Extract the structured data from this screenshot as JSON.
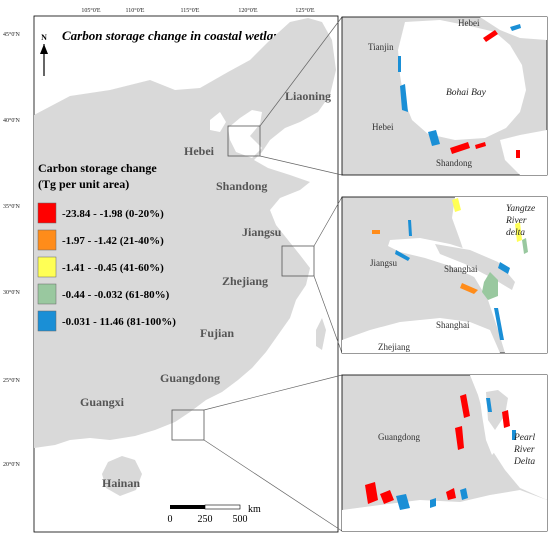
{
  "title": "Carbon storage change in coastal wetlands",
  "north": "N",
  "lon_ticks": [
    "105°0'E",
    "110°0'E",
    "115°0'E",
    "120°0'E",
    "125°0'E"
  ],
  "lat_ticks": [
    "45°0'N",
    "40°0'N",
    "35°0'N",
    "30°0'N",
    "25°0'N",
    "20°0'N"
  ],
  "legend": {
    "title_line1": "Carbon storage change",
    "title_line2": "(Tg per unit area)",
    "items": [
      {
        "label": "-23.84 - -1.98 (0-20%)",
        "color": "#ff0000"
      },
      {
        "label": "-1.97 - -1.42 (21-40%)",
        "color": "#ff8c1a"
      },
      {
        "label": "-1.41 - -0.45 (41-60%)",
        "color": "#ffff55"
      },
      {
        "label": "-0.44 - -0.032 (61-80%)",
        "color": "#99c89f"
      },
      {
        "label": "-0.031 - 11.46 (81-100%)",
        "color": "#1a8fd6"
      }
    ]
  },
  "provinces": {
    "liaoning": "Liaoning",
    "hebei": "Hebei",
    "shandong": "Shandong",
    "jiangsu": "Jiangsu",
    "zhejiang": "Zhejiang",
    "fujian": "Fujian",
    "guangdong": "Guangdong",
    "guangxi": "Guangxi",
    "hainan": "Hainan"
  },
  "scale": {
    "unit": "km",
    "labels": [
      "0",
      "250",
      "500"
    ]
  },
  "insets": {
    "bohai": {
      "hebei_top": "Hebei",
      "tianjin": "Tianjin",
      "hebei_left": "Hebei",
      "bay": "Bohai Bay",
      "shandong": "Shandong"
    },
    "yangtze": {
      "delta_line1": "Yangtze",
      "delta_line2": "River",
      "delta_line3": "delta",
      "jiangsu": "Jiangsu",
      "shanghai1": "Shanghai",
      "shanghai2": "Shanghai",
      "zhejiang": "Zhejiang"
    },
    "pearl": {
      "guangdong": "Guangdong",
      "delta_line1": "Pearl",
      "delta_line2": "River",
      "delta_line3": "Delta"
    }
  },
  "colors": {
    "land": "#d9d9d9",
    "frame": "#000000"
  }
}
